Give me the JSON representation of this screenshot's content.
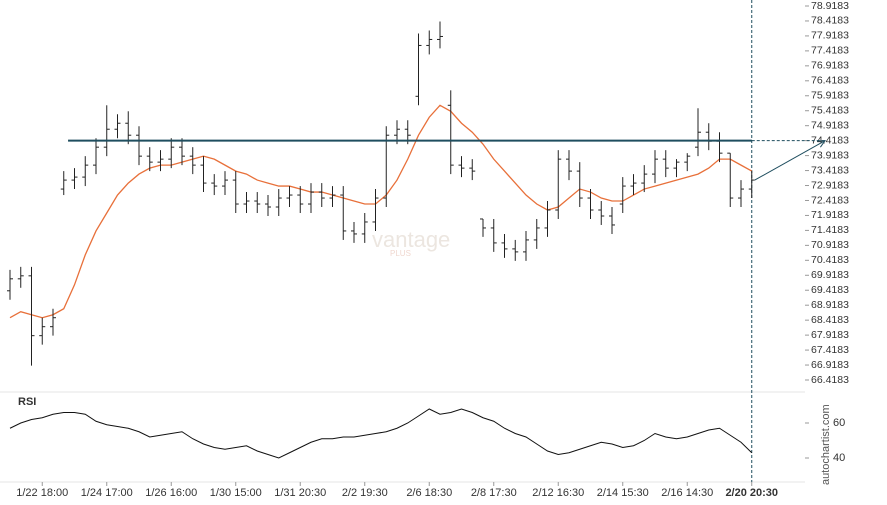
{
  "chart_data": [
    {
      "type": "ohlc",
      "categories": [
        null,
        null,
        null,
        "1/22 18:00",
        null,
        null,
        null,
        null,
        null,
        "1/24 17:00",
        null,
        null,
        null,
        null,
        null,
        "1/26 16:00",
        null,
        null,
        null,
        null,
        null,
        "1/30 15:00",
        null,
        null,
        null,
        null,
        null,
        "1/31 20:30",
        null,
        null,
        null,
        null,
        null,
        "2/2 19:30",
        null,
        null,
        null,
        null,
        null,
        "2/6 18:30",
        null,
        null,
        null,
        null,
        null,
        "2/8 17:30",
        null,
        null,
        null,
        null,
        null,
        "2/12 16:30",
        null,
        null,
        null,
        null,
        null,
        "2/14 15:30",
        null,
        null,
        null,
        null,
        null,
        "2/16 14:30",
        null,
        null,
        null,
        null,
        null,
        "2/20 20:30"
      ],
      "open": [
        69.4,
        69.8,
        69.9,
        67.9,
        68.2,
        72.8,
        73.1,
        73.2,
        73.6,
        74.2,
        74.8,
        75.0,
        74.6,
        73.9,
        73.7,
        73.8,
        74.2,
        73.9,
        73.6,
        73.0,
        72.9,
        73.1,
        72.3,
        72.4,
        72.3,
        72.2,
        72.5,
        72.6,
        72.3,
        72.7,
        72.5,
        72.6,
        71.4,
        71.3,
        71.7,
        72.5,
        74.6,
        74.8,
        75.9,
        77.6,
        77.8,
        75.6,
        73.6,
        73.5,
        71.8,
        71.5,
        71.0,
        70.8,
        70.7,
        71.1,
        71.5,
        72.1,
        73.8,
        73.4,
        72.5,
        72.1,
        71.9,
        72.3,
        72.9,
        73.0,
        73.3,
        73.8,
        73.5,
        73.7,
        74.2,
        74.7,
        74.4,
        74.0,
        72.5,
        72.8
      ],
      "high": [
        70.1,
        70.2,
        70.2,
        68.5,
        68.8,
        73.4,
        73.5,
        73.9,
        74.5,
        75.6,
        75.3,
        75.4,
        74.9,
        74.2,
        74.1,
        74.5,
        74.5,
        74.2,
        73.9,
        73.3,
        73.4,
        73.4,
        72.7,
        72.7,
        72.6,
        72.8,
        72.9,
        72.9,
        73.0,
        73.0,
        72.9,
        72.9,
        71.7,
        72.0,
        72.8,
        74.9,
        75.1,
        75.1,
        78.0,
        78.1,
        78.4,
        76.1,
        73.9,
        73.8,
        71.8,
        71.8,
        71.3,
        71.1,
        71.4,
        71.8,
        72.4,
        74.1,
        74.1,
        73.7,
        72.8,
        72.4,
        72.2,
        73.2,
        73.3,
        73.6,
        74.1,
        74.1,
        73.8,
        74.0,
        75.5,
        75.0,
        74.7,
        74.0,
        73.1,
        73.4
      ],
      "low": [
        69.1,
        69.5,
        66.9,
        67.6,
        67.9,
        72.6,
        72.8,
        72.9,
        73.3,
        73.9,
        74.5,
        74.3,
        73.6,
        73.4,
        73.4,
        73.5,
        73.6,
        73.3,
        72.7,
        72.6,
        72.6,
        72.0,
        72.0,
        72.0,
        71.9,
        71.9,
        72.2,
        72.0,
        72.0,
        72.2,
        72.2,
        71.1,
        71.0,
        71.0,
        71.4,
        72.2,
        74.3,
        74.3,
        75.6,
        77.3,
        77.5,
        73.3,
        73.2,
        73.1,
        71.2,
        70.7,
        70.5,
        70.4,
        70.4,
        70.8,
        71.2,
        71.8,
        73.1,
        72.2,
        71.8,
        71.6,
        71.3,
        72.0,
        72.6,
        72.7,
        73.0,
        73.2,
        73.2,
        73.4,
        73.9,
        74.1,
        73.7,
        72.2,
        72.2,
        72.5
      ],
      "close": [
        69.8,
        69.9,
        67.9,
        68.2,
        68.5,
        73.1,
        73.2,
        73.6,
        74.2,
        74.8,
        75.0,
        74.6,
        73.9,
        73.7,
        73.8,
        74.2,
        73.9,
        73.6,
        73.0,
        72.9,
        73.1,
        72.3,
        72.4,
        72.3,
        72.2,
        72.5,
        72.6,
        72.3,
        72.7,
        72.5,
        72.6,
        71.4,
        71.3,
        71.7,
        72.5,
        74.6,
        74.8,
        74.6,
        77.6,
        77.8,
        77.9,
        73.6,
        73.5,
        73.4,
        71.5,
        71.0,
        70.8,
        70.7,
        71.1,
        71.5,
        72.1,
        73.8,
        73.4,
        72.5,
        72.1,
        71.9,
        71.6,
        72.9,
        73.0,
        73.3,
        73.8,
        73.5,
        73.7,
        73.9,
        74.7,
        74.4,
        74.0,
        72.5,
        72.8,
        73.1
      ],
      "bar_color": "#222222",
      "overlay": {
        "color": "#e8703a",
        "values": [
          68.5,
          68.7,
          68.6,
          68.5,
          68.6,
          68.8,
          69.6,
          70.6,
          71.4,
          72.0,
          72.6,
          73.0,
          73.3,
          73.5,
          73.6,
          73.6,
          73.7,
          73.8,
          73.9,
          73.8,
          73.6,
          73.4,
          73.3,
          73.1,
          73.0,
          72.9,
          72.9,
          72.8,
          72.7,
          72.7,
          72.6,
          72.5,
          72.4,
          72.3,
          72.3,
          72.6,
          73.1,
          73.8,
          74.6,
          75.2,
          75.6,
          75.4,
          75.0,
          74.7,
          74.3,
          73.8,
          73.4,
          73.0,
          72.6,
          72.3,
          72.1,
          72.2,
          72.5,
          72.8,
          72.7,
          72.5,
          72.4,
          72.4,
          72.6,
          72.8,
          72.9,
          73.0,
          73.1,
          73.2,
          73.3,
          73.5,
          73.8,
          73.8,
          73.6,
          73.4
        ]
      },
      "level": 74.4183,
      "level_color": "#1f4e5f",
      "ylim": [
        66.4183,
        78.9183
      ],
      "yticks": [
        78.9183,
        78.4183,
        77.9183,
        77.4183,
        76.9183,
        76.4183,
        75.9183,
        75.4183,
        74.9183,
        74.4183,
        73.9183,
        73.4183,
        72.9183,
        72.4183,
        71.9183,
        71.4183,
        70.9183,
        70.4183,
        69.9183,
        69.4183,
        68.9183,
        68.4183,
        67.9183,
        67.4183,
        66.9183,
        66.4183
      ],
      "annotations": [
        "vantage",
        "PLUS",
        "autochartist.com"
      ]
    },
    {
      "type": "line",
      "title": "RSI",
      "color": "#111111",
      "values": [
        57,
        60,
        62,
        63,
        65,
        66,
        66,
        65,
        61,
        59,
        58,
        57,
        55,
        52,
        53,
        54,
        55,
        51,
        48,
        46,
        45,
        46,
        47,
        44,
        42,
        40,
        43,
        46,
        49,
        51,
        51,
        52,
        52,
        53,
        54,
        55,
        57,
        60,
        64,
        68,
        65,
        66,
        68,
        66,
        63,
        61,
        57,
        54,
        52,
        48,
        44,
        42,
        43,
        45,
        47,
        49,
        48,
        46,
        47,
        50,
        54,
        52,
        51,
        52,
        54,
        56,
        57,
        53,
        49,
        43
      ],
      "ylim": [
        28,
        76
      ],
      "yticks": [
        40,
        60
      ]
    }
  ]
}
